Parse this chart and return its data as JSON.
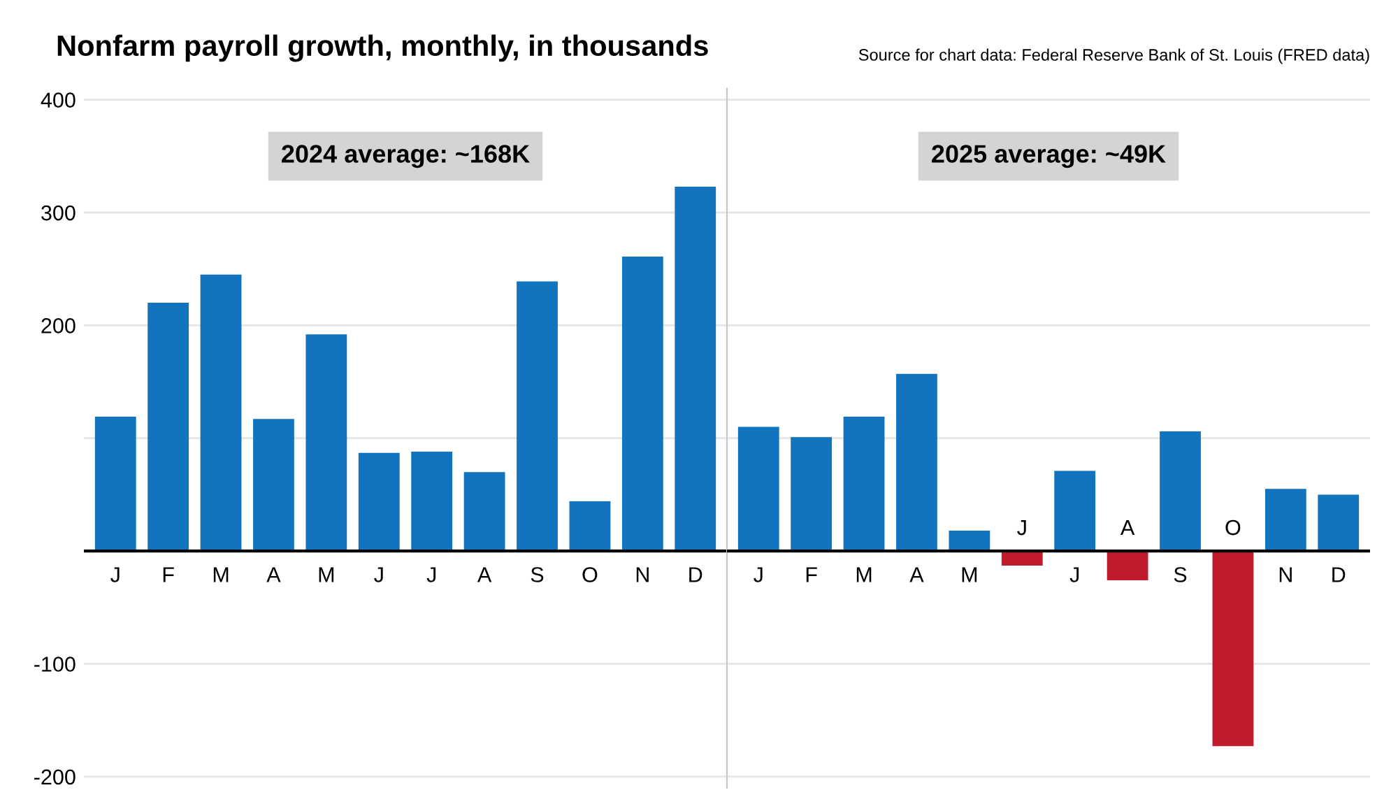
{
  "chart_data": [
    {
      "type": "bar",
      "title": "Nonfarm payroll growth, monthly, in thousands",
      "categories": [
        "J",
        "F",
        "M",
        "A",
        "M",
        "J",
        "J",
        "A",
        "S",
        "O",
        "N",
        "D"
      ],
      "values": [
        119,
        220,
        245,
        117,
        192,
        87,
        88,
        70,
        239,
        44,
        261,
        323
      ],
      "colors": [
        "#1274bf",
        "#1274bf",
        "#1274bf",
        "#1274bf",
        "#1274bf",
        "#1274bf",
        "#1274bf",
        "#1274bf",
        "#1274bf",
        "#1274bf",
        "#1274bf",
        "#1274bf"
      ],
      "ylim": [
        -210,
        410
      ],
      "yticks": [
        400,
        300,
        200,
        {
          "value": 100,
          "label": null
        },
        -100,
        -200
      ],
      "grid": "y",
      "annotations": [
        "Source for chart data: Federal Reserve Bank of St. Louis (FRED data)",
        "2024 average: ~168K"
      ]
    },
    {
      "type": "bar",
      "categories": [
        "J",
        "F",
        "M",
        "A",
        "M",
        "J",
        "J",
        "A",
        "S",
        "O",
        "N",
        "D"
      ],
      "values": [
        110,
        101,
        119,
        157,
        18,
        -13,
        71,
        -26,
        106,
        -173,
        55,
        50
      ],
      "colors": [
        "#1274bf",
        "#1274bf",
        "#1274bf",
        "#1274bf",
        "#1274bf",
        "#c01c2c",
        "#1274bf",
        "#c01c2c",
        "#1274bf",
        "#c01c2c",
        "#1274bf",
        "#1274bf"
      ],
      "ylim": [
        -210,
        410
      ],
      "yticks": [
        400,
        300,
        200,
        {
          "value": 100,
          "label": null
        },
        -100,
        -200
      ],
      "grid": "y",
      "tick_labels": "x",
      "annotations": [
        "2025 average: ~49K"
      ]
    }
  ]
}
